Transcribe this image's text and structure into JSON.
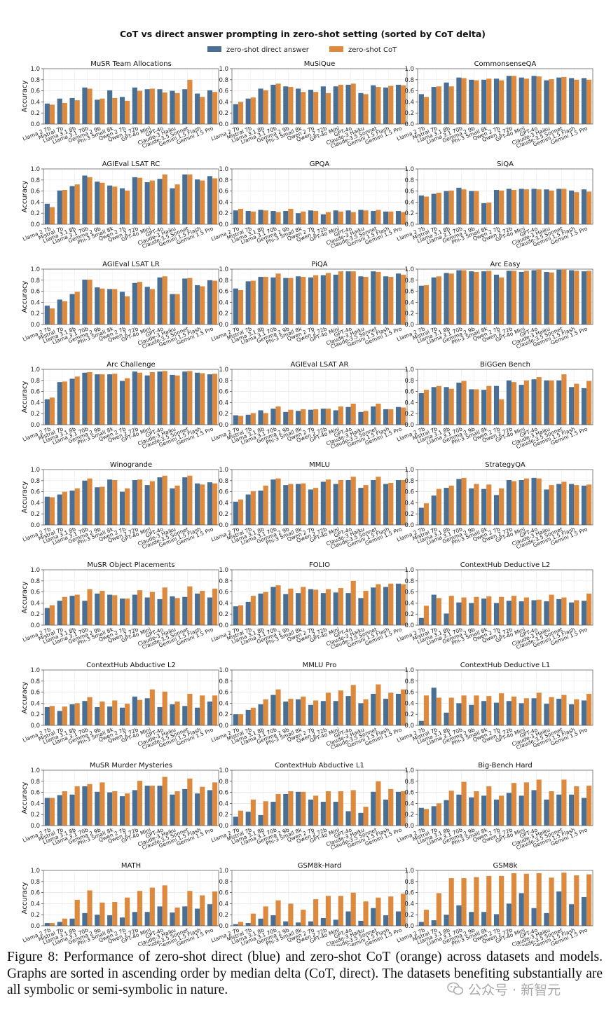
{
  "chart_data": {
    "type": "bar",
    "title": "CoT vs direct answer prompting in zero-shot setting (sorted by CoT delta)",
    "legend": {
      "placement": "top-center"
    },
    "series_names": [
      "zero-shot direct answer",
      "zero-shot CoT"
    ],
    "colors": {
      "direct": "#4a6f95",
      "cot": "#dd8a3e"
    },
    "ylabel": "Accuracy",
    "ylim": [
      0,
      1.0
    ],
    "yticks": [
      "0.0",
      "0.2",
      "0.4",
      "0.6",
      "0.8",
      "1.0"
    ],
    "grid": true,
    "categories": [
      "Llama 2 7b",
      "Mistral 7b",
      "Llama 3.1 8b",
      "Llama 3.1 70b",
      "Gemma 2 9b",
      "Phi-3 Small 8k",
      "Qwen 2 7b",
      "Qwen 2 72b",
      "GPT-4o Mini",
      "GPT-4o",
      "Claude-3 Haiku",
      "Claude-3.5 Sonnet",
      "Gemini 1.5 Flash",
      "Gemini 1.5 Pro"
    ],
    "panels": [
      {
        "title": "MuSR Team Allocations",
        "direct": [
          0.37,
          0.46,
          0.47,
          0.66,
          0.44,
          0.61,
          0.49,
          0.66,
          0.63,
          0.63,
          0.6,
          0.63,
          0.55,
          0.61
        ],
        "cot": [
          0.35,
          0.38,
          0.43,
          0.64,
          0.46,
          0.47,
          0.42,
          0.6,
          0.64,
          0.57,
          0.56,
          0.8,
          0.49,
          0.58
        ]
      },
      {
        "title": "MuSiQue",
        "direct": [
          0.36,
          0.46,
          0.64,
          0.71,
          0.68,
          0.64,
          0.62,
          0.68,
          0.68,
          0.71,
          0.56,
          0.7,
          0.66,
          0.71
        ],
        "cot": [
          0.4,
          0.48,
          0.61,
          0.73,
          0.67,
          0.58,
          0.58,
          0.56,
          0.71,
          0.73,
          0.54,
          0.67,
          0.69,
          0.7
        ]
      },
      {
        "title": "CommonsenseQA",
        "direct": [
          0.54,
          0.67,
          0.75,
          0.84,
          0.8,
          0.8,
          0.82,
          0.87,
          0.84,
          0.87,
          0.79,
          0.84,
          0.83,
          0.83
        ],
        "cot": [
          0.49,
          0.68,
          0.68,
          0.83,
          0.79,
          0.82,
          0.79,
          0.87,
          0.82,
          0.86,
          0.81,
          0.85,
          0.8,
          0.8
        ]
      },
      {
        "title": "AGIEval LSAT RC",
        "direct": [
          0.37,
          0.61,
          0.69,
          0.88,
          0.77,
          0.7,
          0.65,
          0.85,
          0.76,
          0.82,
          0.65,
          0.9,
          0.81,
          0.87
        ],
        "cot": [
          0.31,
          0.62,
          0.72,
          0.85,
          0.75,
          0.68,
          0.61,
          0.84,
          0.79,
          0.9,
          0.72,
          0.9,
          0.79,
          0.83
        ]
      },
      {
        "title": "GPQA",
        "direct": [
          0.25,
          0.24,
          0.26,
          0.24,
          0.24,
          0.2,
          0.25,
          0.18,
          0.25,
          0.25,
          0.26,
          0.24,
          0.23,
          0.24
        ],
        "cot": [
          0.28,
          0.23,
          0.25,
          0.22,
          0.28,
          0.23,
          0.24,
          0.22,
          0.23,
          0.22,
          0.25,
          0.26,
          0.23,
          0.22
        ]
      },
      {
        "title": "SiQA",
        "direct": [
          0.52,
          0.55,
          0.6,
          0.66,
          0.6,
          0.38,
          0.62,
          0.64,
          0.64,
          0.64,
          0.63,
          0.64,
          0.61,
          0.63
        ],
        "cot": [
          0.5,
          0.57,
          0.61,
          0.63,
          0.6,
          0.39,
          0.61,
          0.62,
          0.63,
          0.63,
          0.61,
          0.64,
          0.58,
          0.59
        ]
      },
      {
        "title": "AGIEval LSAT LR",
        "direct": [
          0.34,
          0.45,
          0.55,
          0.81,
          0.67,
          0.64,
          0.59,
          0.75,
          0.68,
          0.85,
          0.55,
          0.83,
          0.71,
          0.8
        ],
        "cot": [
          0.29,
          0.42,
          0.59,
          0.81,
          0.65,
          0.64,
          0.51,
          0.77,
          0.64,
          0.87,
          0.55,
          0.84,
          0.69,
          0.79
        ]
      },
      {
        "title": "PiQA",
        "direct": [
          0.65,
          0.78,
          0.86,
          0.85,
          0.84,
          0.87,
          0.85,
          0.89,
          0.9,
          0.96,
          0.87,
          0.96,
          0.87,
          0.92
        ],
        "cot": [
          0.62,
          0.79,
          0.86,
          0.92,
          0.84,
          0.86,
          0.89,
          0.93,
          0.96,
          0.96,
          0.86,
          0.95,
          0.86,
          0.9
        ]
      },
      {
        "title": "Arc Easy",
        "direct": [
          0.7,
          0.85,
          0.93,
          0.98,
          0.96,
          0.96,
          0.9,
          0.97,
          0.95,
          0.98,
          0.95,
          0.99,
          0.98,
          0.96
        ],
        "cot": [
          0.71,
          0.87,
          0.92,
          0.98,
          0.95,
          0.97,
          0.85,
          0.97,
          0.97,
          0.99,
          0.94,
          0.99,
          0.97,
          0.97
        ]
      },
      {
        "title": "Arc Challenge",
        "direct": [
          0.46,
          0.77,
          0.83,
          0.94,
          0.91,
          0.91,
          0.79,
          0.96,
          0.89,
          0.96,
          0.9,
          0.96,
          0.94,
          0.91
        ],
        "cot": [
          0.49,
          0.78,
          0.87,
          0.95,
          0.91,
          0.92,
          0.84,
          0.94,
          0.95,
          0.97,
          0.89,
          0.97,
          0.93,
          0.92
        ]
      },
      {
        "title": "AGIEval LSAT AR",
        "direct": [
          0.17,
          0.18,
          0.26,
          0.29,
          0.23,
          0.25,
          0.27,
          0.29,
          0.26,
          0.32,
          0.23,
          0.33,
          0.28,
          0.32
        ],
        "cot": [
          0.16,
          0.21,
          0.21,
          0.33,
          0.27,
          0.28,
          0.28,
          0.29,
          0.33,
          0.38,
          0.25,
          0.38,
          0.28,
          0.31
        ]
      },
      {
        "title": "BiGGen Bench",
        "direct": [
          0.57,
          0.68,
          0.68,
          0.76,
          0.64,
          0.63,
          0.7,
          0.8,
          0.72,
          0.82,
          0.8,
          0.8,
          0.68,
          0.66
        ],
        "cot": [
          0.63,
          0.7,
          0.65,
          0.79,
          0.64,
          0.7,
          0.46,
          0.77,
          0.8,
          0.86,
          0.8,
          0.91,
          0.74,
          0.79
        ]
      },
      {
        "title": "Winogrande",
        "direct": [
          0.51,
          0.55,
          0.62,
          0.8,
          0.68,
          0.82,
          0.6,
          0.81,
          0.72,
          0.86,
          0.66,
          0.86,
          0.75,
          0.77
        ],
        "cot": [
          0.5,
          0.6,
          0.66,
          0.84,
          0.69,
          0.81,
          0.66,
          0.82,
          0.79,
          0.89,
          0.71,
          0.89,
          0.73,
          0.75
        ]
      },
      {
        "title": "MMLU",
        "direct": [
          0.42,
          0.55,
          0.62,
          0.82,
          0.72,
          0.74,
          0.64,
          0.78,
          0.74,
          0.81,
          0.67,
          0.81,
          0.74,
          0.81
        ],
        "cot": [
          0.46,
          0.61,
          0.71,
          0.84,
          0.74,
          0.75,
          0.67,
          0.82,
          0.81,
          0.87,
          0.72,
          0.87,
          0.76,
          0.81
        ]
      },
      {
        "title": "StrategyQA",
        "direct": [
          0.31,
          0.53,
          0.67,
          0.83,
          0.66,
          0.65,
          0.54,
          0.81,
          0.81,
          0.85,
          0.64,
          0.74,
          0.74,
          0.71
        ],
        "cot": [
          0.39,
          0.65,
          0.71,
          0.85,
          0.74,
          0.73,
          0.66,
          0.79,
          0.84,
          0.84,
          0.72,
          0.78,
          0.72,
          0.73
        ]
      },
      {
        "title": "MuSR Object Placements",
        "direct": [
          0.31,
          0.44,
          0.53,
          0.44,
          0.57,
          0.55,
          0.48,
          0.55,
          0.5,
          0.47,
          0.52,
          0.51,
          0.57,
          0.5
        ],
        "cot": [
          0.36,
          0.51,
          0.55,
          0.65,
          0.62,
          0.54,
          0.48,
          0.63,
          0.6,
          0.68,
          0.49,
          0.7,
          0.62,
          0.66
        ]
      },
      {
        "title": "FOLIO",
        "direct": [
          0.34,
          0.42,
          0.57,
          0.69,
          0.56,
          0.58,
          0.65,
          0.58,
          0.59,
          0.58,
          0.49,
          0.68,
          0.69,
          0.75
        ],
        "cot": [
          0.36,
          0.53,
          0.6,
          0.72,
          0.66,
          0.69,
          0.64,
          0.65,
          0.67,
          0.8,
          0.62,
          0.74,
          0.75,
          0.74
        ]
      },
      {
        "title": "ContextHub Deductive L2",
        "direct": [
          0.13,
          0.55,
          0.21,
          0.41,
          0.4,
          0.48,
          0.4,
          0.44,
          0.43,
          0.45,
          0.43,
          0.47,
          0.41,
          0.44
        ],
        "cot": [
          0.35,
          0.49,
          0.53,
          0.5,
          0.51,
          0.52,
          0.51,
          0.53,
          0.5,
          0.46,
          0.55,
          0.5,
          0.45,
          0.57
        ]
      },
      {
        "title": "ContextHub Abductive L2",
        "direct": [
          0.33,
          0.26,
          0.38,
          0.44,
          0.33,
          0.34,
          0.32,
          0.52,
          0.49,
          0.33,
          0.38,
          0.35,
          0.32,
          0.43
        ],
        "cot": [
          0.35,
          0.34,
          0.4,
          0.51,
          0.43,
          0.45,
          0.39,
          0.46,
          0.65,
          0.61,
          0.43,
          0.57,
          0.54,
          0.54
        ]
      },
      {
        "title": "MMLU Pro",
        "direct": [
          0.2,
          0.28,
          0.38,
          0.55,
          0.43,
          0.47,
          0.37,
          0.44,
          0.44,
          0.53,
          0.4,
          0.57,
          0.48,
          0.57
        ],
        "cot": [
          0.2,
          0.32,
          0.47,
          0.65,
          0.48,
          0.52,
          0.45,
          0.59,
          0.63,
          0.73,
          0.47,
          0.74,
          0.59,
          0.65
        ]
      },
      {
        "title": "ContextHub Deductive L1",
        "direct": [
          0.08,
          0.68,
          0.23,
          0.4,
          0.37,
          0.44,
          0.41,
          0.44,
          0.4,
          0.49,
          0.39,
          0.48,
          0.38,
          0.45
        ],
        "cot": [
          0.54,
          0.5,
          0.5,
          0.54,
          0.54,
          0.53,
          0.58,
          0.52,
          0.49,
          0.59,
          0.51,
          0.55,
          0.47,
          0.57
        ]
      },
      {
        "title": "MuSR Murder Mysteries",
        "direct": [
          0.5,
          0.55,
          0.56,
          0.71,
          0.61,
          0.6,
          0.53,
          0.64,
          0.72,
          0.72,
          0.56,
          0.66,
          0.58,
          0.64
        ],
        "cot": [
          0.5,
          0.62,
          0.71,
          0.75,
          0.78,
          0.62,
          0.58,
          0.81,
          0.72,
          0.88,
          0.62,
          0.85,
          0.7,
          0.78
        ]
      },
      {
        "title": "ContextHub Abductive L1",
        "direct": [
          0.16,
          0.25,
          0.19,
          0.43,
          0.57,
          0.61,
          0.47,
          0.43,
          0.43,
          0.26,
          0.23,
          0.61,
          0.47,
          0.61
        ],
        "cot": [
          0.27,
          0.47,
          0.44,
          0.57,
          0.62,
          0.61,
          0.54,
          0.62,
          0.62,
          0.64,
          0.34,
          0.8,
          0.66,
          0.62
        ]
      },
      {
        "title": "Big-Bench Hard",
        "direct": [
          0.32,
          0.35,
          0.46,
          0.56,
          0.51,
          0.54,
          0.47,
          0.59,
          0.54,
          0.64,
          0.47,
          0.56,
          0.56,
          0.5
        ],
        "cot": [
          0.3,
          0.4,
          0.63,
          0.79,
          0.62,
          0.71,
          0.54,
          0.77,
          0.78,
          0.83,
          0.62,
          0.83,
          0.71,
          0.72
        ]
      },
      {
        "title": "MATH",
        "direct": [
          0.05,
          0.07,
          0.13,
          0.23,
          0.2,
          0.19,
          0.15,
          0.25,
          0.25,
          0.35,
          0.24,
          0.35,
          0.31,
          0.39
        ],
        "cot": [
          0.05,
          0.13,
          0.47,
          0.64,
          0.42,
          0.43,
          0.51,
          0.63,
          0.69,
          0.73,
          0.33,
          0.63,
          0.55,
          0.62
        ]
      },
      {
        "title": "GSM8k-Hard",
        "direct": [
          0.03,
          0.05,
          0.13,
          0.19,
          0.08,
          0.06,
          0.08,
          0.14,
          0.11,
          0.26,
          0.09,
          0.32,
          0.19,
          0.26
        ],
        "cot": [
          0.07,
          0.22,
          0.35,
          0.46,
          0.4,
          0.29,
          0.48,
          0.54,
          0.54,
          0.6,
          0.44,
          0.51,
          0.53,
          0.58
        ]
      },
      {
        "title": "GSM8k",
        "direct": [
          0.07,
          0.1,
          0.2,
          0.37,
          0.25,
          0.25,
          0.21,
          0.4,
          0.59,
          0.32,
          0.23,
          0.62,
          0.39,
          0.52
        ],
        "cot": [
          0.29,
          0.59,
          0.86,
          0.86,
          0.88,
          0.9,
          0.9,
          0.95,
          0.94,
          0.95,
          0.87,
          0.96,
          0.91,
          0.93
        ]
      }
    ]
  },
  "caption": "Figure 8: Performance of zero-shot direct (blue) and zero-shot CoT (orange) across datasets and models. Graphs are sorted in ascending order by median delta (CoT, direct). The datasets benefiting substantially are all symbolic or semi-symbolic in nature.",
  "watermark": {
    "text": "公众号 · 新智元",
    "icon": "wechat-icon"
  }
}
